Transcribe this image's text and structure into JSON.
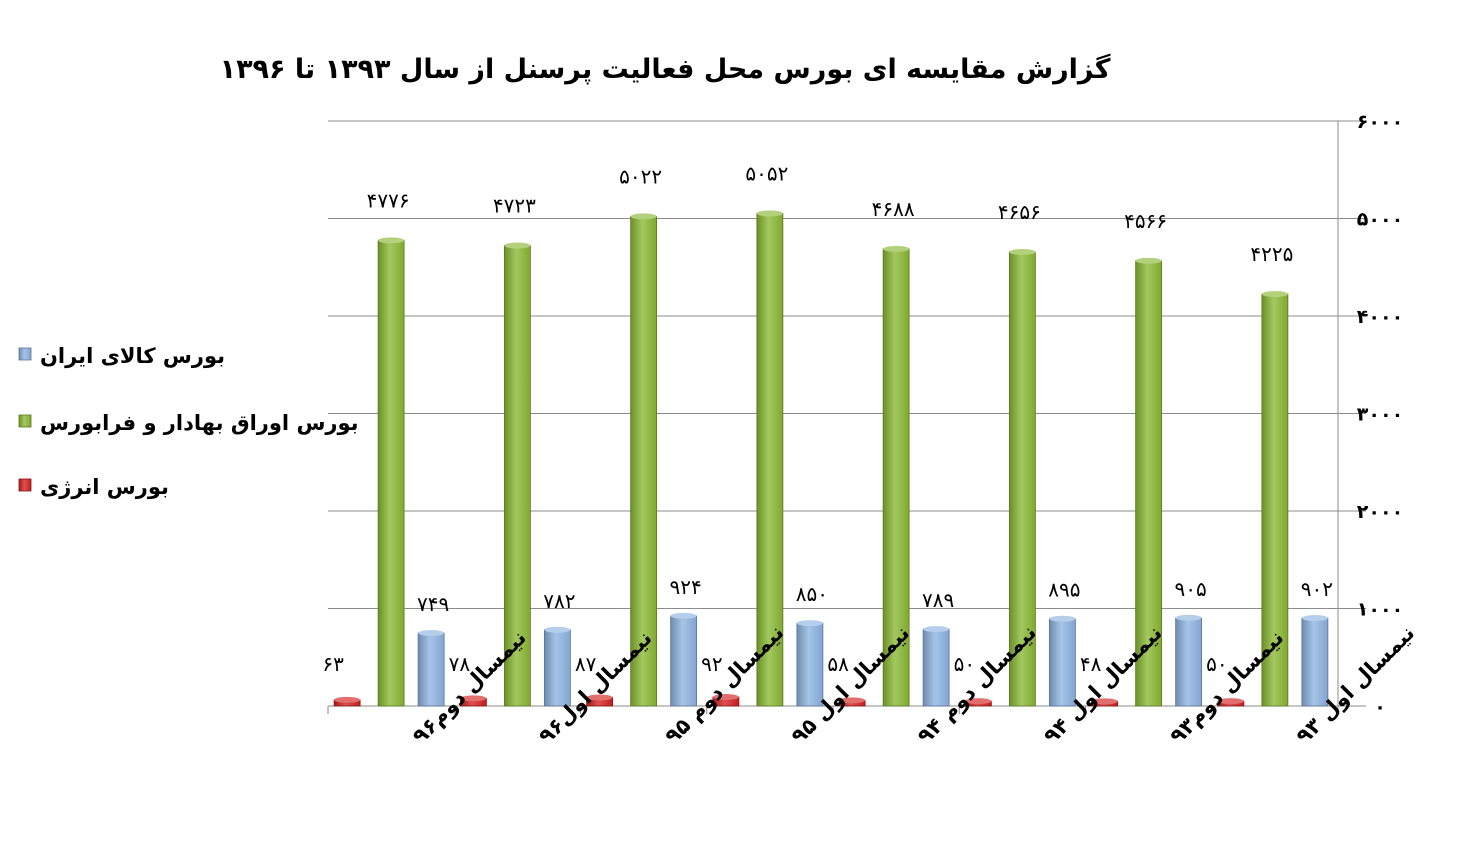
{
  "chart_data": {
    "type": "bar",
    "title": "گزارش مقایسه ای بورس محل فعالیت پرسنل از سال ۱۳۹۳ تا ۱۳۹۶",
    "categories": [
      "نیمسال اول ۹۳",
      "نیمسال دوم۹۳",
      "نیمسال اول ۹۴",
      "نیمسال دوم ۹۴",
      "نیمسال اول ۹۵",
      "نیمسال دوم ۹۵",
      "نیمسال اول۹۶",
      "نیمسال دوم۹۶"
    ],
    "series": [
      {
        "name": "بورس انرژی",
        "color": "#d42020",
        "values": [
          50,
          48,
          50,
          58,
          92,
          87,
          78,
          63
        ],
        "labels": [
          "۵۰",
          "۴۸",
          "۵۰",
          "۵۸",
          "۹۲",
          "۸۷",
          "۷۸",
          "۶۳"
        ]
      },
      {
        "name": "بورس اوراق بهادار و فرابورس",
        "color": "#8ab833",
        "values": [
          4225,
          4566,
          4656,
          4688,
          5052,
          5022,
          4723,
          4776
        ],
        "labels": [
          "۴۲۲۵",
          "۴۵۶۶",
          "۴۶۵۶",
          "۴۶۸۸",
          "۵۰۵۲",
          "۵۰۲۲",
          "۴۷۲۳",
          "۴۷۷۶"
        ]
      },
      {
        "name": "بورس کالای ایران",
        "color": "#8db3e2",
        "values": [
          902,
          905,
          895,
          789,
          850,
          924,
          782,
          749
        ],
        "labels": [
          "۹۰۲",
          "۹۰۵",
          "۸۹۵",
          "۷۸۹",
          "۸۵۰",
          "۹۲۴",
          "۷۸۲",
          "۷۴۹"
        ]
      }
    ],
    "ylim": [
      0,
      6000
    ],
    "yticks": [
      0,
      1000,
      2000,
      3000,
      4000,
      5000,
      6000
    ],
    "ytick_labels": [
      "۰",
      "۱۰۰۰",
      "۲۰۰۰",
      "۳۰۰۰",
      "۴۰۰۰",
      "۵۰۰۰",
      "۶۰۰۰"
    ],
    "y_axis_side": "right",
    "x_direction": "right-to-left",
    "grid": true,
    "legend": {
      "position": "left",
      "order": [
        "بورس کالای ایران",
        "بورس اوراق بهادار و فرابورس",
        "بورس انرژی"
      ]
    }
  }
}
